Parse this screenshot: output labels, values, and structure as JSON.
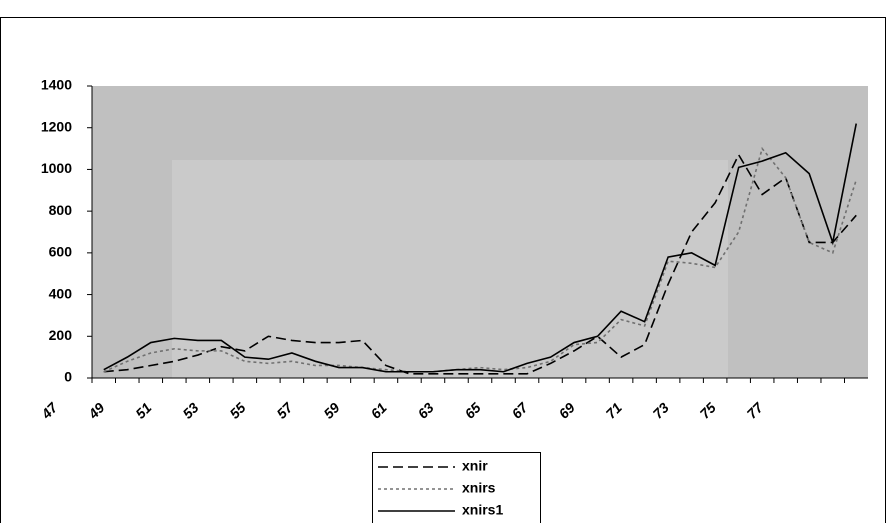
{
  "chart_data": {
    "type": "line",
    "categories": [
      "47",
      null,
      "49",
      null,
      "51",
      null,
      "53",
      null,
      "55",
      null,
      "57",
      null,
      "59",
      null,
      "61",
      null,
      "63",
      null,
      "65",
      null,
      "67",
      null,
      "69",
      null,
      "71",
      null,
      "73",
      null,
      "75",
      null,
      "77",
      null,
      null
    ],
    "series": [
      {
        "name": "xnir",
        "color": "#000000",
        "dash": "10,5",
        "values": [
          30,
          40,
          60,
          80,
          110,
          150,
          130,
          200,
          180,
          170,
          170,
          180,
          60,
          20,
          20,
          20,
          20,
          20,
          20,
          70,
          130,
          200,
          100,
          160,
          450,
          700,
          840,
          1070,
          880,
          960,
          650,
          650,
          780
        ]
      },
      {
        "name": "xnirs",
        "color": "#707070",
        "dash": "3,3",
        "values": [
          30,
          80,
          120,
          140,
          130,
          130,
          80,
          70,
          80,
          60,
          60,
          50,
          40,
          30,
          30,
          40,
          50,
          40,
          50,
          80,
          160,
          170,
          280,
          250,
          560,
          550,
          530,
          700,
          1100,
          960,
          650,
          600,
          950
        ]
      },
      {
        "name": "xnirs1",
        "color": "#000000",
        "dash": "none",
        "values": [
          40,
          100,
          170,
          190,
          180,
          180,
          100,
          90,
          120,
          80,
          50,
          50,
          30,
          30,
          30,
          40,
          40,
          30,
          70,
          100,
          170,
          200,
          320,
          270,
          580,
          600,
          540,
          1010,
          1040,
          1080,
          980,
          650,
          1220
        ]
      }
    ],
    "ylim": [
      0,
      1400
    ],
    "yticks": [
      0,
      200,
      400,
      600,
      800,
      1000,
      1200,
      1400
    ],
    "grid": false
  }
}
